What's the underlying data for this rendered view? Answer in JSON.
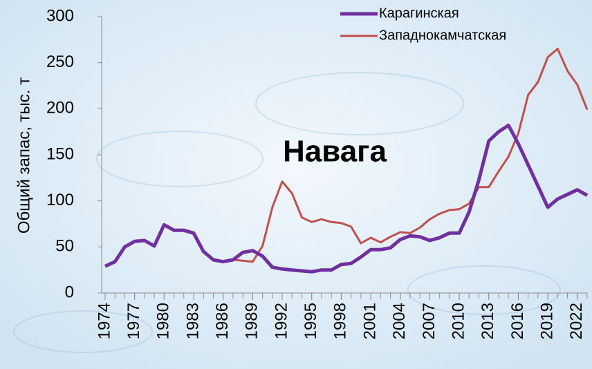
{
  "chart_data": {
    "type": "line",
    "annotation": "Навага",
    "y_label": "Общий запас, тыс. т",
    "x": [
      1974,
      1975,
      1976,
      1977,
      1978,
      1979,
      1980,
      1981,
      1982,
      1983,
      1984,
      1985,
      1986,
      1987,
      1988,
      1989,
      1990,
      1991,
      1992,
      1993,
      1994,
      1995,
      1996,
      1997,
      1998,
      1999,
      2000,
      2001,
      2002,
      2003,
      2004,
      2005,
      2006,
      2007,
      2008,
      2009,
      2010,
      2011,
      2012,
      2013,
      2014,
      2015,
      2016,
      2017,
      2018,
      2019,
      2020,
      2021,
      2022,
      2023
    ],
    "series": [
      {
        "name": "Карагинская",
        "color": "#7030a0",
        "values": [
          29,
          34,
          50,
          56,
          57,
          51,
          74,
          68,
          68,
          65,
          45,
          36,
          34,
          36,
          44,
          46,
          40,
          28,
          26,
          25,
          24,
          23,
          25,
          25,
          31,
          32,
          39,
          47,
          47,
          49,
          58,
          62,
          61,
          57,
          60,
          65,
          65,
          88,
          123,
          165,
          175,
          182,
          162,
          139,
          116,
          93,
          102,
          107,
          112,
          106
        ]
      },
      {
        "name": "Западнокамчатская",
        "color": "#c0504d",
        "values": [
          null,
          null,
          null,
          null,
          null,
          null,
          null,
          null,
          null,
          null,
          null,
          null,
          null,
          36,
          35,
          34,
          51,
          93,
          121,
          108,
          82,
          77,
          80,
          77,
          76,
          72,
          54,
          60,
          55,
          61,
          66,
          65,
          71,
          80,
          86,
          90,
          91,
          97,
          115,
          115,
          132,
          148,
          173,
          215,
          229,
          256,
          265,
          241,
          226,
          199
        ]
      }
    ],
    "xlim": [
      1974,
      2023
    ],
    "xticks": [
      1974,
      1977,
      1980,
      1983,
      1986,
      1989,
      1992,
      1995,
      1998,
      2001,
      2004,
      2007,
      2010,
      2013,
      2016,
      2019,
      2022
    ],
    "ylim": [
      0,
      300
    ],
    "yticks": [
      0,
      50,
      100,
      150,
      200,
      250,
      300
    ],
    "legend": "top-right"
  }
}
